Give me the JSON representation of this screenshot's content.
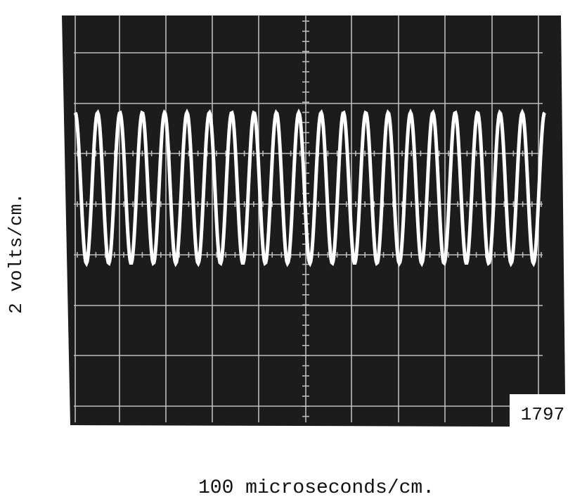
{
  "y_axis_label": "2 volts/cm.",
  "x_axis_label": "100 microseconds/cm.",
  "figure_number": "1797"
}
